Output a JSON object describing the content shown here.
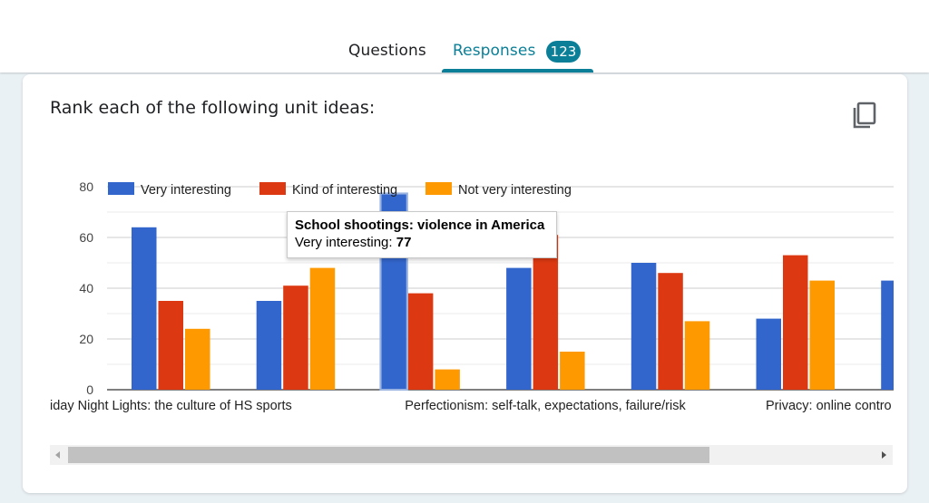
{
  "tabs": {
    "questions_label": "Questions",
    "responses_label": "Responses",
    "responses_count": "123"
  },
  "question": {
    "title": "Rank each of the following unit ideas:"
  },
  "icons": {
    "copy": "copy-icon",
    "scroll_left": "arrow-left-icon",
    "scroll_right": "arrow-right-icon"
  },
  "colors": {
    "accent": "#0b7f97",
    "very": "#3366cc",
    "kind": "#dc3912",
    "not": "#ff9900"
  },
  "tooltip": {
    "title": "School shootings: violence in America",
    "series_label": "Very interesting:",
    "value": "77"
  },
  "chart_data": {
    "type": "bar",
    "title": "",
    "xlabel": "",
    "ylabel": "",
    "ylim": [
      0,
      80
    ],
    "yticks": [
      0,
      20,
      40,
      60,
      80
    ],
    "grid": true,
    "legend_position": "top",
    "categories": [
      "Friday Night Lights: the culture of HS sports",
      "",
      "School shootings: violence in America",
      "Perfectionism: self-talk, expectations, failure/risk",
      "",
      "Privacy: online controls",
      ""
    ],
    "visible_category_labels": [
      "iday Night Lights: the culture of HS sports",
      "Perfectionism: self-talk, expectations, failure/risk",
      "Privacy: online contro"
    ],
    "series": [
      {
        "name": "Very interesting",
        "color": "#3366cc",
        "values": [
          64,
          35,
          77,
          48,
          50,
          28,
          43
        ]
      },
      {
        "name": "Kind of interesting",
        "color": "#dc3912",
        "values": [
          35,
          41,
          38,
          61,
          46,
          53,
          null
        ]
      },
      {
        "name": "Not very interesting",
        "color": "#ff9900",
        "values": [
          24,
          48,
          8,
          15,
          27,
          43,
          null
        ]
      }
    ]
  }
}
